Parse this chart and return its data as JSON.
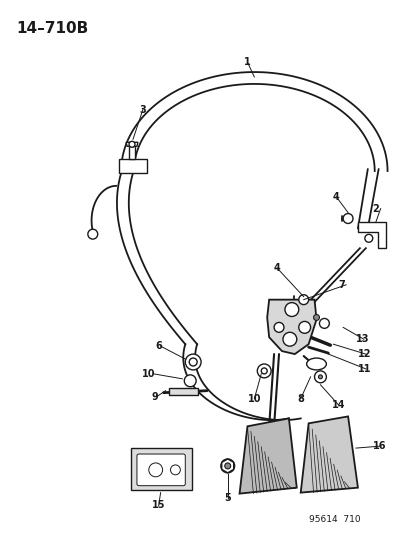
{
  "title": "14–710B",
  "bg_color": "#ffffff",
  "line_color": "#1a1a1a",
  "fig_number": "95614  710",
  "lw_cable": 1.3,
  "lw_part": 1.0
}
